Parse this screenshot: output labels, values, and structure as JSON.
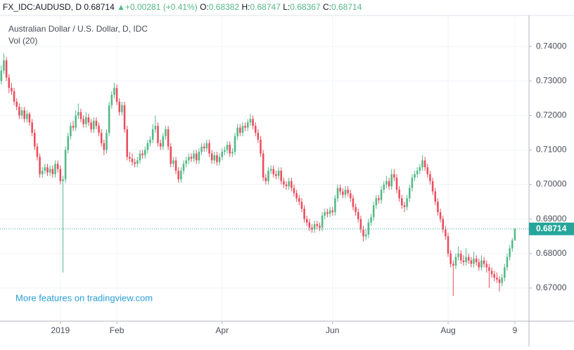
{
  "header": {
    "symbol": "FX_IDC:AUDUSD, D",
    "last": 0.68714,
    "change": {
      "value": 0.00281,
      "label": "+0.00281"
    },
    "change_pct": {
      "value": 0.41,
      "label": "(+0.41%)"
    },
    "open_label": "O:",
    "open": 0.68382,
    "high_label": "H:",
    "high": 0.68747,
    "low_label": "L:",
    "low": 0.68367,
    "close_label": "C:",
    "close": 0.68714
  },
  "chart_data": {
    "type": "candlestick",
    "title": "Australian Dollar / U.S. Dollar, D, IDC",
    "subtitle": "Vol (20)",
    "annotation": "More features on tradingview.com",
    "up_color": "#53b987",
    "down_color": "#eb4d5c",
    "grid": true,
    "last_price": 0.68714,
    "last_price_color": "#26a69a",
    "ylim": [
      0.6604,
      0.749
    ],
    "yticks": [
      {
        "value": 0.67,
        "label": "0.67000"
      },
      {
        "value": 0.68,
        "label": "0.68000"
      },
      {
        "value": 0.69,
        "label": "0.69000"
      },
      {
        "value": 0.7,
        "label": "0.70000"
      },
      {
        "value": 0.71,
        "label": "0.71000"
      },
      {
        "value": 0.72,
        "label": "0.72000"
      },
      {
        "value": 0.73,
        "label": "0.73000"
      },
      {
        "value": 0.74,
        "label": "0.74000"
      }
    ],
    "xlim": [
      -0.5,
      205.5
    ],
    "xticks": [
      {
        "value": 23,
        "label": "2019"
      },
      {
        "value": 45,
        "label": "Feb"
      },
      {
        "value": 86,
        "label": "Apr"
      },
      {
        "value": 129,
        "label": "Jun"
      },
      {
        "value": 174,
        "label": "Aug"
      },
      {
        "value": 200,
        "label": "9"
      }
    ],
    "candles": [
      [
        0.73,
        0.7345,
        0.729,
        0.733
      ],
      [
        0.733,
        0.738,
        0.732,
        0.736
      ],
      [
        0.736,
        0.737,
        0.73,
        0.731
      ],
      [
        0.731,
        0.732,
        0.7265,
        0.728
      ],
      [
        0.728,
        0.7295,
        0.726,
        0.727
      ],
      [
        0.727,
        0.728,
        0.723,
        0.724
      ],
      [
        0.724,
        0.725,
        0.7215,
        0.7225
      ],
      [
        0.7225,
        0.7235,
        0.719,
        0.72
      ],
      [
        0.72,
        0.7225,
        0.719,
        0.7215
      ],
      [
        0.7215,
        0.7225,
        0.718,
        0.719
      ],
      [
        0.719,
        0.7215,
        0.718,
        0.7205
      ],
      [
        0.7205,
        0.721,
        0.717,
        0.718
      ],
      [
        0.718,
        0.719,
        0.714,
        0.715
      ],
      [
        0.715,
        0.716,
        0.71,
        0.711
      ],
      [
        0.711,
        0.712,
        0.707,
        0.708
      ],
      [
        0.708,
        0.709,
        0.702,
        0.703
      ],
      [
        0.703,
        0.705,
        0.702,
        0.704
      ],
      [
        0.704,
        0.706,
        0.703,
        0.705
      ],
      [
        0.705,
        0.706,
        0.7025,
        0.7035
      ],
      [
        0.7035,
        0.7055,
        0.7025,
        0.7045
      ],
      [
        0.7045,
        0.7055,
        0.702,
        0.703
      ],
      [
        0.703,
        0.707,
        0.702,
        0.706
      ],
      [
        0.706,
        0.707,
        0.7035,
        0.7045
      ],
      [
        0.7045,
        0.7055,
        0.7,
        0.701
      ],
      [
        0.701,
        0.7025,
        0.6745,
        0.7015
      ],
      [
        0.7015,
        0.711,
        0.7005,
        0.71
      ],
      [
        0.71,
        0.715,
        0.709,
        0.714
      ],
      [
        0.714,
        0.718,
        0.713,
        0.717
      ],
      [
        0.717,
        0.7185,
        0.7155,
        0.7165
      ],
      [
        0.7165,
        0.7215,
        0.7155,
        0.72
      ],
      [
        0.72,
        0.7235,
        0.719,
        0.721
      ],
      [
        0.721,
        0.722,
        0.718,
        0.719
      ],
      [
        0.719,
        0.72,
        0.7165,
        0.7175
      ],
      [
        0.7175,
        0.721,
        0.7165,
        0.7195
      ],
      [
        0.7195,
        0.7205,
        0.717,
        0.718
      ],
      [
        0.718,
        0.719,
        0.715,
        0.716
      ],
      [
        0.716,
        0.7195,
        0.715,
        0.7185
      ],
      [
        0.7185,
        0.7195,
        0.716,
        0.717
      ],
      [
        0.717,
        0.718,
        0.714,
        0.715
      ],
      [
        0.715,
        0.716,
        0.711,
        0.712
      ],
      [
        0.712,
        0.713,
        0.7085,
        0.71
      ],
      [
        0.71,
        0.716,
        0.709,
        0.715
      ],
      [
        0.715,
        0.724,
        0.714,
        0.723
      ],
      [
        0.723,
        0.727,
        0.722,
        0.726
      ],
      [
        0.726,
        0.7295,
        0.725,
        0.728
      ],
      [
        0.728,
        0.729,
        0.723,
        0.724
      ],
      [
        0.724,
        0.725,
        0.72,
        0.721
      ],
      [
        0.721,
        0.724,
        0.72,
        0.723
      ],
      [
        0.723,
        0.724,
        0.715,
        0.716
      ],
      [
        0.716,
        0.717,
        0.707,
        0.708
      ],
      [
        0.708,
        0.7095,
        0.7065,
        0.7075
      ],
      [
        0.7075,
        0.709,
        0.7055,
        0.7065
      ],
      [
        0.7065,
        0.7075,
        0.705,
        0.706
      ],
      [
        0.706,
        0.708,
        0.705,
        0.707
      ],
      [
        0.707,
        0.71,
        0.706,
        0.709
      ],
      [
        0.709,
        0.71,
        0.7075,
        0.7085
      ],
      [
        0.7085,
        0.711,
        0.7075,
        0.71
      ],
      [
        0.71,
        0.713,
        0.709,
        0.712
      ],
      [
        0.712,
        0.714,
        0.711,
        0.713
      ],
      [
        0.713,
        0.7175,
        0.712,
        0.716
      ],
      [
        0.716,
        0.72,
        0.715,
        0.717
      ],
      [
        0.717,
        0.718,
        0.711,
        0.712
      ],
      [
        0.712,
        0.713,
        0.71,
        0.711
      ],
      [
        0.711,
        0.715,
        0.71,
        0.714
      ],
      [
        0.714,
        0.717,
        0.713,
        0.716
      ],
      [
        0.716,
        0.717,
        0.71,
        0.711
      ],
      [
        0.711,
        0.712,
        0.705,
        0.706
      ],
      [
        0.706,
        0.708,
        0.705,
        0.707
      ],
      [
        0.707,
        0.708,
        0.703,
        0.704
      ],
      [
        0.704,
        0.705,
        0.7005,
        0.7015
      ],
      [
        0.7015,
        0.705,
        0.7005,
        0.704
      ],
      [
        0.704,
        0.707,
        0.703,
        0.706
      ],
      [
        0.706,
        0.708,
        0.705,
        0.707
      ],
      [
        0.707,
        0.709,
        0.706,
        0.708
      ],
      [
        0.708,
        0.709,
        0.7065,
        0.7075
      ],
      [
        0.7075,
        0.71,
        0.7065,
        0.709
      ],
      [
        0.709,
        0.71,
        0.706,
        0.707
      ],
      [
        0.707,
        0.7105,
        0.706,
        0.7095
      ],
      [
        0.7095,
        0.712,
        0.7085,
        0.711
      ],
      [
        0.711,
        0.712,
        0.7095,
        0.7105
      ],
      [
        0.7105,
        0.713,
        0.7095,
        0.712
      ],
      [
        0.712,
        0.713,
        0.708,
        0.709
      ],
      [
        0.709,
        0.71,
        0.706,
        0.707
      ],
      [
        0.707,
        0.7095,
        0.706,
        0.7085
      ],
      [
        0.7085,
        0.7095,
        0.7055,
        0.7065
      ],
      [
        0.7065,
        0.709,
        0.7055,
        0.708
      ],
      [
        0.708,
        0.7105,
        0.707,
        0.7095
      ],
      [
        0.7095,
        0.711,
        0.7085,
        0.71
      ],
      [
        0.71,
        0.7125,
        0.709,
        0.7115
      ],
      [
        0.7115,
        0.7125,
        0.708,
        0.709
      ],
      [
        0.709,
        0.7105,
        0.708,
        0.7095
      ],
      [
        0.7095,
        0.715,
        0.7085,
        0.714
      ],
      [
        0.714,
        0.7175,
        0.713,
        0.7165
      ],
      [
        0.7165,
        0.7175,
        0.714,
        0.715
      ],
      [
        0.715,
        0.718,
        0.714,
        0.717
      ],
      [
        0.717,
        0.718,
        0.7155,
        0.7165
      ],
      [
        0.7165,
        0.719,
        0.7155,
        0.718
      ],
      [
        0.718,
        0.7205,
        0.717,
        0.719
      ],
      [
        0.719,
        0.72,
        0.716,
        0.717
      ],
      [
        0.717,
        0.718,
        0.714,
        0.715
      ],
      [
        0.715,
        0.716,
        0.712,
        0.713
      ],
      [
        0.713,
        0.714,
        0.708,
        0.709
      ],
      [
        0.709,
        0.71,
        0.701,
        0.702
      ],
      [
        0.702,
        0.703,
        0.7,
        0.701
      ],
      [
        0.701,
        0.705,
        0.7,
        0.704
      ],
      [
        0.704,
        0.7055,
        0.703,
        0.7045
      ],
      [
        0.7045,
        0.7055,
        0.702,
        0.703
      ],
      [
        0.703,
        0.704,
        0.7015,
        0.7025
      ],
      [
        0.7025,
        0.705,
        0.7015,
        0.704
      ],
      [
        0.704,
        0.705,
        0.7,
        0.701
      ],
      [
        0.701,
        0.702,
        0.699,
        0.7
      ],
      [
        0.7,
        0.701,
        0.6985,
        0.6995
      ],
      [
        0.6995,
        0.702,
        0.6985,
        0.701
      ],
      [
        0.701,
        0.702,
        0.698,
        0.699
      ],
      [
        0.699,
        0.7,
        0.6965,
        0.6975
      ],
      [
        0.6975,
        0.6985,
        0.695,
        0.696
      ],
      [
        0.696,
        0.697,
        0.694,
        0.695
      ],
      [
        0.695,
        0.696,
        0.692,
        0.693
      ],
      [
        0.693,
        0.694,
        0.689,
        0.69
      ],
      [
        0.69,
        0.691,
        0.688,
        0.689
      ],
      [
        0.689,
        0.69,
        0.6865,
        0.6875
      ],
      [
        0.6875,
        0.6885,
        0.686,
        0.687
      ],
      [
        0.687,
        0.6895,
        0.686,
        0.6885
      ],
      [
        0.6885,
        0.6895,
        0.687,
        0.688
      ],
      [
        0.688,
        0.689,
        0.6865,
        0.6875
      ],
      [
        0.6875,
        0.692,
        0.6865,
        0.691
      ],
      [
        0.691,
        0.693,
        0.69,
        0.692
      ],
      [
        0.692,
        0.693,
        0.6905,
        0.6915
      ],
      [
        0.6915,
        0.6935,
        0.6905,
        0.6925
      ],
      [
        0.6925,
        0.6935,
        0.691,
        0.692
      ],
      [
        0.692,
        0.697,
        0.691,
        0.696
      ],
      [
        0.696,
        0.7,
        0.695,
        0.699
      ],
      [
        0.699,
        0.7,
        0.697,
        0.698
      ],
      [
        0.698,
        0.699,
        0.696,
        0.697
      ],
      [
        0.697,
        0.6995,
        0.696,
        0.6985
      ],
      [
        0.6985,
        0.6995,
        0.6965,
        0.6975
      ],
      [
        0.6975,
        0.6985,
        0.695,
        0.696
      ],
      [
        0.696,
        0.697,
        0.6925,
        0.6935
      ],
      [
        0.6935,
        0.6945,
        0.691,
        0.692
      ],
      [
        0.692,
        0.693,
        0.689,
        0.69
      ],
      [
        0.69,
        0.691,
        0.686,
        0.687
      ],
      [
        0.687,
        0.688,
        0.6835,
        0.685
      ],
      [
        0.685,
        0.687,
        0.684,
        0.6855
      ],
      [
        0.6855,
        0.69,
        0.6845,
        0.689
      ],
      [
        0.689,
        0.6915,
        0.688,
        0.6905
      ],
      [
        0.6905,
        0.695,
        0.6895,
        0.694
      ],
      [
        0.694,
        0.697,
        0.693,
        0.696
      ],
      [
        0.696,
        0.697,
        0.6945,
        0.6955
      ],
      [
        0.6955,
        0.6995,
        0.6945,
        0.6985
      ],
      [
        0.6985,
        0.701,
        0.6975,
        0.7
      ],
      [
        0.7,
        0.7025,
        0.699,
        0.701
      ],
      [
        0.701,
        0.702,
        0.6985,
        0.6995
      ],
      [
        0.6995,
        0.7045,
        0.6985,
        0.703
      ],
      [
        0.703,
        0.7045,
        0.701,
        0.702
      ],
      [
        0.702,
        0.703,
        0.6975,
        0.6985
      ],
      [
        0.6985,
        0.6995,
        0.695,
        0.696
      ],
      [
        0.696,
        0.697,
        0.693,
        0.694
      ],
      [
        0.694,
        0.695,
        0.692,
        0.6935
      ],
      [
        0.6935,
        0.697,
        0.6925,
        0.696
      ],
      [
        0.696,
        0.7,
        0.695,
        0.699
      ],
      [
        0.699,
        0.703,
        0.698,
        0.702
      ],
      [
        0.702,
        0.704,
        0.701,
        0.703
      ],
      [
        0.703,
        0.705,
        0.702,
        0.704
      ],
      [
        0.704,
        0.706,
        0.703,
        0.705
      ],
      [
        0.705,
        0.7085,
        0.704,
        0.707
      ],
      [
        0.707,
        0.708,
        0.704,
        0.705
      ],
      [
        0.705,
        0.706,
        0.702,
        0.703
      ],
      [
        0.703,
        0.704,
        0.7,
        0.701
      ],
      [
        0.701,
        0.702,
        0.697,
        0.698
      ],
      [
        0.698,
        0.699,
        0.694,
        0.695
      ],
      [
        0.695,
        0.696,
        0.691,
        0.692
      ],
      [
        0.692,
        0.693,
        0.689,
        0.69
      ],
      [
        0.69,
        0.691,
        0.686,
        0.687
      ],
      [
        0.687,
        0.688,
        0.684,
        0.685
      ],
      [
        0.685,
        0.686,
        0.679,
        0.68
      ],
      [
        0.68,
        0.681,
        0.676,
        0.677
      ],
      [
        0.677,
        0.678,
        0.6677,
        0.6765
      ],
      [
        0.6765,
        0.68,
        0.6755,
        0.679
      ],
      [
        0.679,
        0.682,
        0.678,
        0.68
      ],
      [
        0.68,
        0.681,
        0.677,
        0.678
      ],
      [
        0.678,
        0.6795,
        0.6765,
        0.6775
      ],
      [
        0.6775,
        0.6815,
        0.6765,
        0.679
      ],
      [
        0.679,
        0.68,
        0.677,
        0.678
      ],
      [
        0.678,
        0.679,
        0.676,
        0.677
      ],
      [
        0.677,
        0.6805,
        0.676,
        0.6785
      ],
      [
        0.6785,
        0.6795,
        0.6765,
        0.6775
      ],
      [
        0.6775,
        0.6785,
        0.675,
        0.676
      ],
      [
        0.676,
        0.6795,
        0.675,
        0.678
      ],
      [
        0.678,
        0.679,
        0.676,
        0.677
      ],
      [
        0.677,
        0.678,
        0.6745,
        0.676
      ],
      [
        0.676,
        0.677,
        0.67,
        0.675
      ],
      [
        0.675,
        0.676,
        0.673,
        0.674
      ],
      [
        0.674,
        0.675,
        0.672,
        0.673
      ],
      [
        0.673,
        0.6745,
        0.6715,
        0.6725
      ],
      [
        0.6725,
        0.6735,
        0.669,
        0.6715
      ],
      [
        0.6715,
        0.674,
        0.6705,
        0.673
      ],
      [
        0.673,
        0.677,
        0.672,
        0.676
      ],
      [
        0.676,
        0.68,
        0.675,
        0.679
      ],
      [
        0.679,
        0.6825,
        0.678,
        0.6815
      ],
      [
        0.6815,
        0.6845,
        0.6805,
        0.6838
      ],
      [
        0.68382,
        0.68747,
        0.68367,
        0.68714
      ]
    ]
  }
}
